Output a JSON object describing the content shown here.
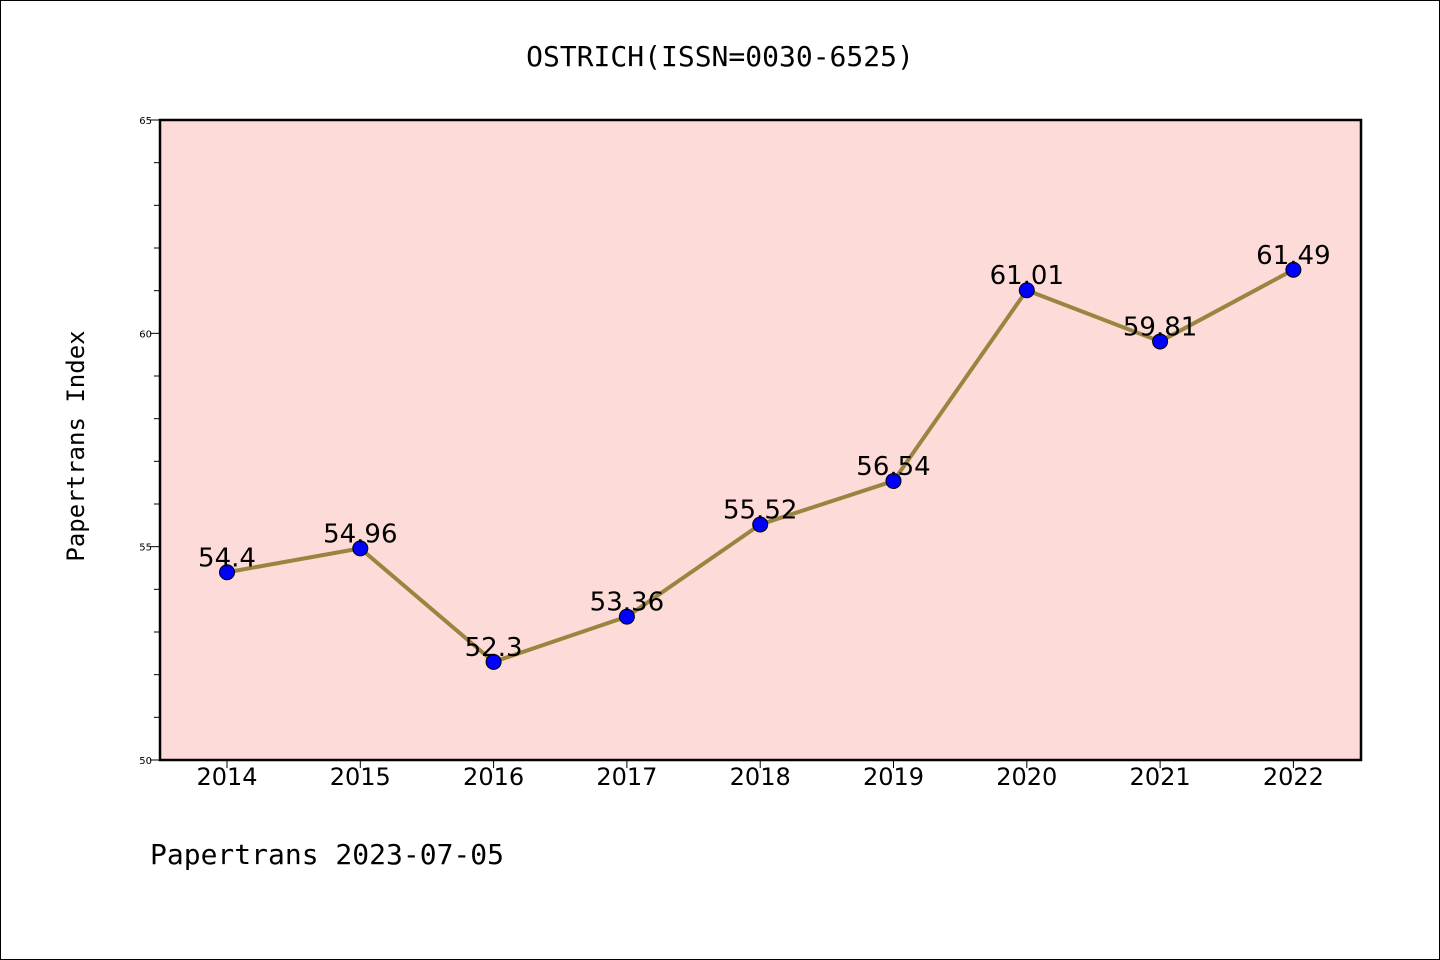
{
  "chart_data": {
    "type": "line",
    "title": "OSTRICH(ISSN=0030-6525)",
    "ylabel": "Papertrans Index",
    "xlabel": "",
    "categories": [
      "2014",
      "2015",
      "2016",
      "2017",
      "2018",
      "2019",
      "2020",
      "2021",
      "2022"
    ],
    "values": [
      54.4,
      54.96,
      52.3,
      53.36,
      55.52,
      56.54,
      61.01,
      59.81,
      61.49
    ],
    "data_labels": [
      "54.4",
      "54.96",
      "52.3",
      "53.36",
      "55.52",
      "56.54",
      "61.01",
      "59.81",
      "61.49"
    ],
    "ylim": [
      50,
      65
    ],
    "yticks": [
      "50",
      "55",
      "60",
      "65"
    ],
    "grid": false,
    "colors": {
      "plot_background": "#fddbd8",
      "line": "#9a8540",
      "marker": "#0000ff"
    },
    "footer": "Papertrans 2023-07-05"
  }
}
